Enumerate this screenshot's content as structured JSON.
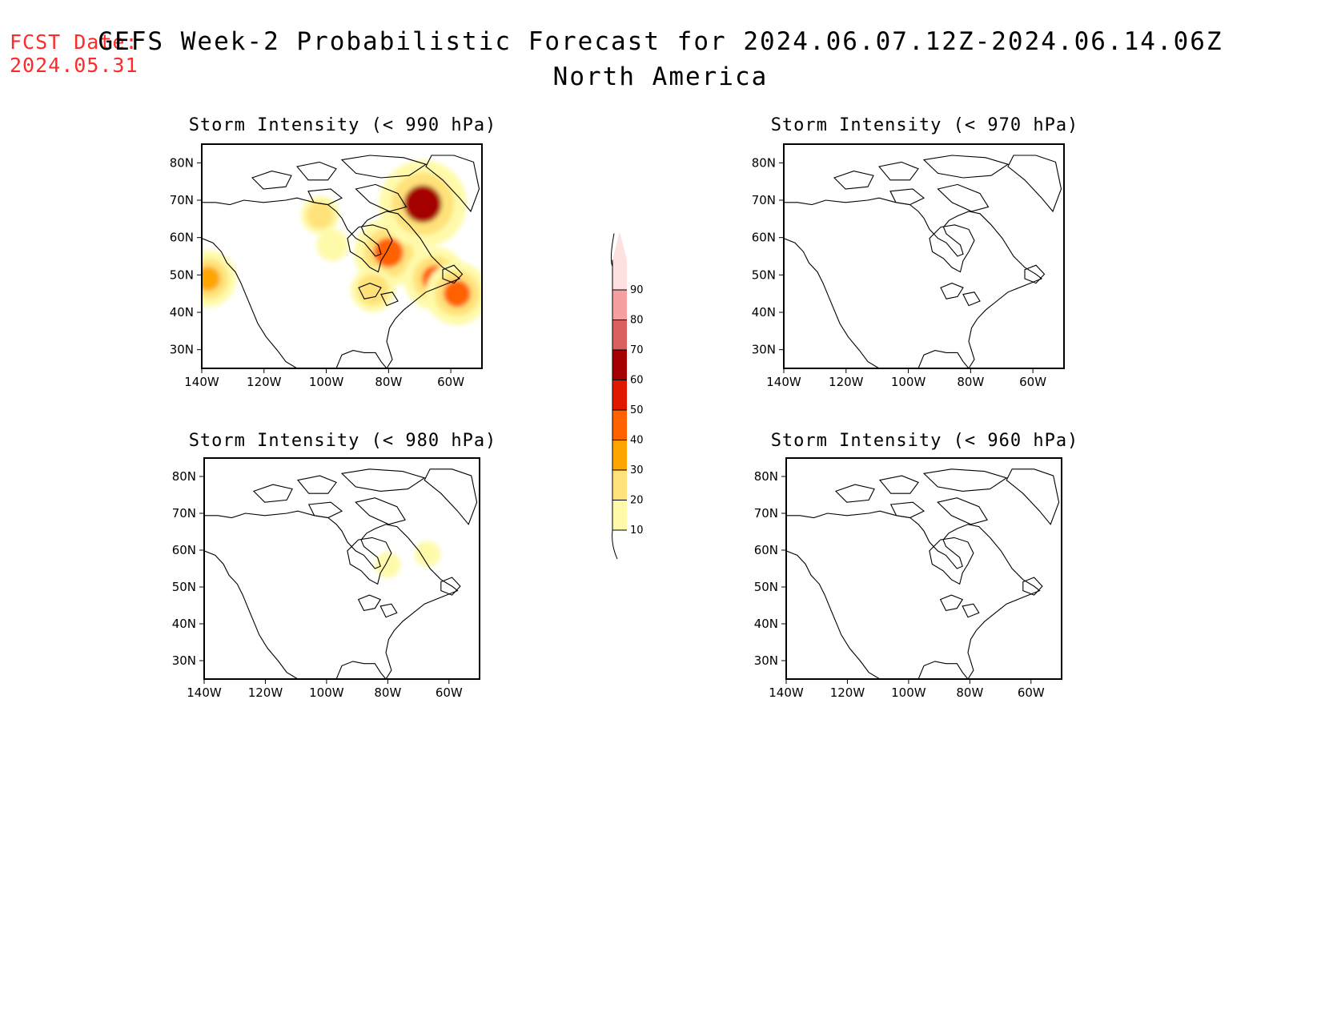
{
  "forecast_date": {
    "label": "FCST Date:",
    "value": "2024.05.31"
  },
  "title": "GEFS Week-2 Probabilistic Forecast for 2024.06.07.12Z-2024.06.14.06Z",
  "subtitle": "North America",
  "panels": [
    {
      "id": "p990",
      "title": "Storm Intensity (< 990 hPa)"
    },
    {
      "id": "p970",
      "title": "Storm Intensity (< 970 hPa)"
    },
    {
      "id": "p980",
      "title": "Storm Intensity (< 980 hPa)"
    },
    {
      "id": "p960",
      "title": "Storm Intensity (< 960 hPa)"
    }
  ],
  "lat_labels": [
    "30N",
    "40N",
    "50N",
    "60N",
    "70N",
    "80N"
  ],
  "lon_labels": [
    "140W",
    "120W",
    "100W",
    "80W",
    "60W"
  ],
  "colorbar": {
    "levels": [
      10,
      20,
      30,
      40,
      50,
      60,
      70,
      80,
      90
    ],
    "colors": [
      "#fffaaa",
      "#ffe27a",
      "#ffa500",
      "#ff6000",
      "#e11800",
      "#a50000",
      "#d96060",
      "#f4a0a0",
      "#fde0e0"
    ]
  },
  "chart_data": {
    "type": "heatmap",
    "map_extent": {
      "lon": [
        -140,
        -50
      ],
      "lat": [
        25,
        85
      ]
    },
    "units": "probability (%)",
    "fields": [
      {
        "panel": "p990",
        "threshold_hpa": 990,
        "areas": [
          {
            "lon": -98,
            "lat": 58,
            "prob": 15
          },
          {
            "lon": -80,
            "lat": 56,
            "prob": 45
          },
          {
            "lon": -69,
            "lat": 69,
            "prob": 60
          },
          {
            "lon": -65,
            "lat": 49,
            "prob": 40
          },
          {
            "lon": -58,
            "lat": 45,
            "prob": 40
          },
          {
            "lon": -138,
            "lat": 49,
            "prob": 35
          },
          {
            "lon": -85,
            "lat": 46,
            "prob": 25
          },
          {
            "lon": -102,
            "lat": 66,
            "prob": 20
          }
        ]
      },
      {
        "panel": "p970",
        "threshold_hpa": 970,
        "areas": []
      },
      {
        "panel": "p980",
        "threshold_hpa": 980,
        "areas": [
          {
            "lon": -80,
            "lat": 56,
            "prob": 10
          },
          {
            "lon": -67,
            "lat": 59,
            "prob": 10
          }
        ]
      },
      {
        "panel": "p960",
        "threshold_hpa": 960,
        "areas": []
      }
    ]
  }
}
